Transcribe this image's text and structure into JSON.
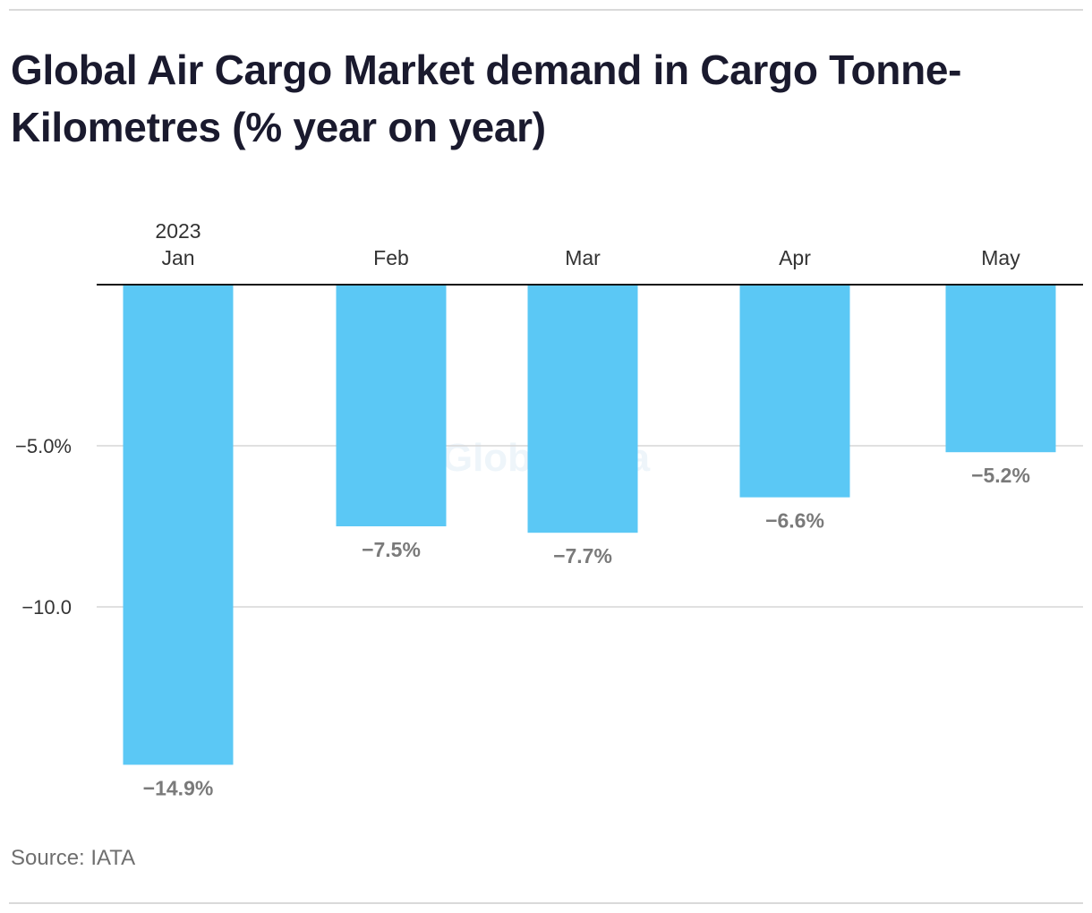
{
  "title": "Global Air Cargo Market demand in Cargo Tonne-Kilometres (% year on year)",
  "source": "Source: IATA",
  "watermark": "GlobalData",
  "colors": {
    "bar": "#5bc8f5",
    "axis": "#111111",
    "grid": "#d6d6d6",
    "tick_text": "#333333",
    "value_label": "#7a7a7a",
    "title": "#1a1a2e",
    "watermark": "#eef5fa"
  },
  "chart_data": {
    "type": "bar",
    "categories": [
      "Jan",
      "Feb",
      "Mar",
      "Apr",
      "May"
    ],
    "year_label": "2023",
    "values": [
      -14.9,
      -7.5,
      -7.7,
      -6.6,
      -5.2
    ],
    "value_labels": [
      "−14.9%",
      "−7.5%",
      "−7.7%",
      "−6.6%",
      "−5.2%"
    ],
    "y_ticks": [
      -5.0,
      -10.0
    ],
    "y_tick_labels": [
      "−5.0%",
      "−10.0"
    ],
    "ylim": [
      -15,
      0
    ],
    "xlabel": "",
    "ylabel": "",
    "x_axis_position": "top",
    "grid": true,
    "legend": "none"
  }
}
